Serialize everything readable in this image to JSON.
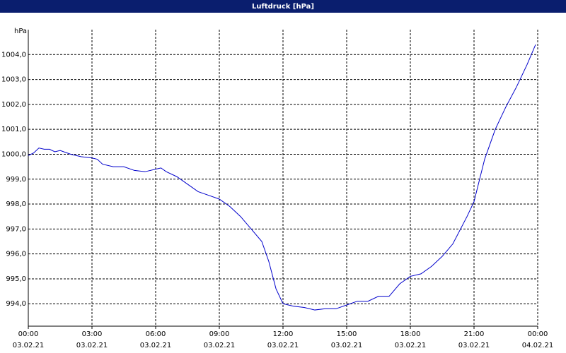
{
  "chart_data": {
    "type": "line",
    "title": "Luftdruck [hPa]",
    "y_label": "hPa",
    "x": [
      0,
      0.25,
      0.5,
      0.75,
      1,
      1.25,
      1.5,
      2,
      2.5,
      3,
      3.25,
      3.5,
      4,
      4.5,
      5,
      5.5,
      6,
      6.25,
      6.5,
      7,
      7.5,
      8,
      8.5,
      9,
      9.5,
      10,
      10.5,
      11,
      11.33,
      11.67,
      12,
      12.5,
      13,
      13.5,
      14,
      14.5,
      15,
      15.5,
      16,
      16.5,
      17,
      17.5,
      18,
      18.5,
      19,
      19.5,
      20,
      20.67,
      21,
      21.5,
      22,
      22.5,
      23,
      23.5,
      23.9
    ],
    "series": [
      {
        "name": "Luftdruck",
        "color": "#0000cc",
        "values": [
          999.95,
          1000.05,
          1000.25,
          1000.2,
          1000.2,
          1000.1,
          1000.15,
          1000.0,
          999.9,
          999.85,
          999.8,
          999.6,
          999.5,
          999.5,
          999.35,
          999.3,
          999.4,
          999.45,
          999.3,
          999.1,
          998.8,
          998.5,
          998.35,
          998.2,
          997.9,
          997.5,
          997.0,
          996.5,
          995.7,
          994.6,
          994.0,
          993.9,
          993.85,
          993.75,
          993.8,
          993.8,
          993.95,
          994.1,
          994.1,
          994.3,
          994.3,
          994.8,
          995.1,
          995.2,
          995.5,
          995.9,
          996.4,
          997.5,
          998.1,
          999.8,
          1001.0,
          1001.9,
          1002.7,
          1003.6,
          1004.4
        ]
      }
    ],
    "xlim": [
      0,
      24
    ],
    "xticks": [
      {
        "value": 0,
        "label": "00:00",
        "date": "03.02.21"
      },
      {
        "value": 3,
        "label": "03:00",
        "date": "03.02.21"
      },
      {
        "value": 6,
        "label": "06:00",
        "date": "03.02.21"
      },
      {
        "value": 9,
        "label": "09:00",
        "date": "03.02.21"
      },
      {
        "value": 12,
        "label": "12:00",
        "date": "03.02.21"
      },
      {
        "value": 15,
        "label": "15:00",
        "date": "03.02.21"
      },
      {
        "value": 18,
        "label": "18:00",
        "date": "03.02.21"
      },
      {
        "value": 21,
        "label": "21:00",
        "date": "03.02.21"
      },
      {
        "value": 24,
        "label": "00:00",
        "date": "04.02.21"
      }
    ],
    "ylim": [
      993.1,
      1005.0
    ],
    "yticks": [
      {
        "value": 994,
        "label": "994,0"
      },
      {
        "value": 995,
        "label": "995,0"
      },
      {
        "value": 996,
        "label": "996,0"
      },
      {
        "value": 997,
        "label": "997,0"
      },
      {
        "value": 998,
        "label": "998,0"
      },
      {
        "value": 999,
        "label": "999,0"
      },
      {
        "value": 1000,
        "label": "1000,0"
      },
      {
        "value": 1001,
        "label": "1001,0"
      },
      {
        "value": 1002,
        "label": "1002,0"
      },
      {
        "value": 1003,
        "label": "1003,0"
      },
      {
        "value": 1004,
        "label": "1004,0"
      }
    ],
    "grid": true
  }
}
